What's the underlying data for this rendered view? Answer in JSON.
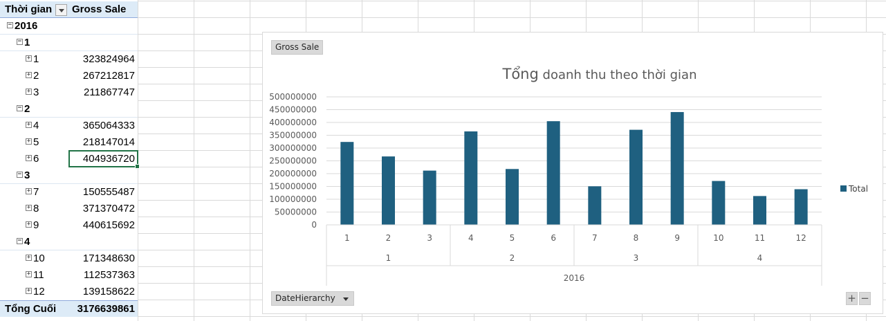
{
  "pivot": {
    "header": {
      "rows_label": "Thời gian",
      "values_label": "Gross Sale"
    },
    "year": "2016",
    "quarters": [
      {
        "label": "1",
        "months": [
          {
            "label": "1",
            "value": "323824964"
          },
          {
            "label": "2",
            "value": "267212817"
          },
          {
            "label": "3",
            "value": "211867747"
          }
        ]
      },
      {
        "label": "2",
        "months": [
          {
            "label": "4",
            "value": "365064333"
          },
          {
            "label": "5",
            "value": "218147014"
          },
          {
            "label": "6",
            "value": "404936720"
          }
        ]
      },
      {
        "label": "3",
        "months": [
          {
            "label": "7",
            "value": "150555487"
          },
          {
            "label": "8",
            "value": "371370472"
          },
          {
            "label": "9",
            "value": "440615692"
          }
        ]
      },
      {
        "label": "4",
        "months": [
          {
            "label": "10",
            "value": "171348630"
          },
          {
            "label": "11",
            "value": "112537363"
          },
          {
            "label": "12",
            "value": "139158622"
          }
        ]
      }
    ],
    "total_label": "Tổng Cuối",
    "total_value": "3176639861",
    "expand_symbol": "+",
    "collapse_symbol": "−"
  },
  "chart": {
    "value_field_button": "Gross Sale",
    "axis_field_button": "DateHierarchy",
    "zoom_in": "+",
    "zoom_out": "−",
    "bar_color": "#1f6080",
    "gridline_color": "#d9d9d9",
    "text_color": "#595959"
  },
  "chart_data": {
    "type": "bar",
    "title_part1": "Tổng",
    "title_part2": " doanh thu theo thời gian",
    "categories": [
      "1",
      "2",
      "3",
      "4",
      "5",
      "6",
      "7",
      "8",
      "9",
      "10",
      "11",
      "12"
    ],
    "groups": [
      {
        "label": "1",
        "count": 3
      },
      {
        "label": "2",
        "count": 3
      },
      {
        "label": "3",
        "count": 3
      },
      {
        "label": "4",
        "count": 3
      }
    ],
    "year_label": "2016",
    "series": [
      {
        "name": "Total",
        "values": [
          323824964,
          267212817,
          211867747,
          365064333,
          218147014,
          404936720,
          150555487,
          371370472,
          440615692,
          171348630,
          112537363,
          139158622
        ]
      }
    ],
    "ylim": [
      0,
      500000000
    ],
    "yticks": [
      0,
      50000000,
      100000000,
      150000000,
      200000000,
      250000000,
      300000000,
      350000000,
      400000000,
      450000000,
      500000000
    ],
    "grid": true,
    "legend": "right"
  }
}
